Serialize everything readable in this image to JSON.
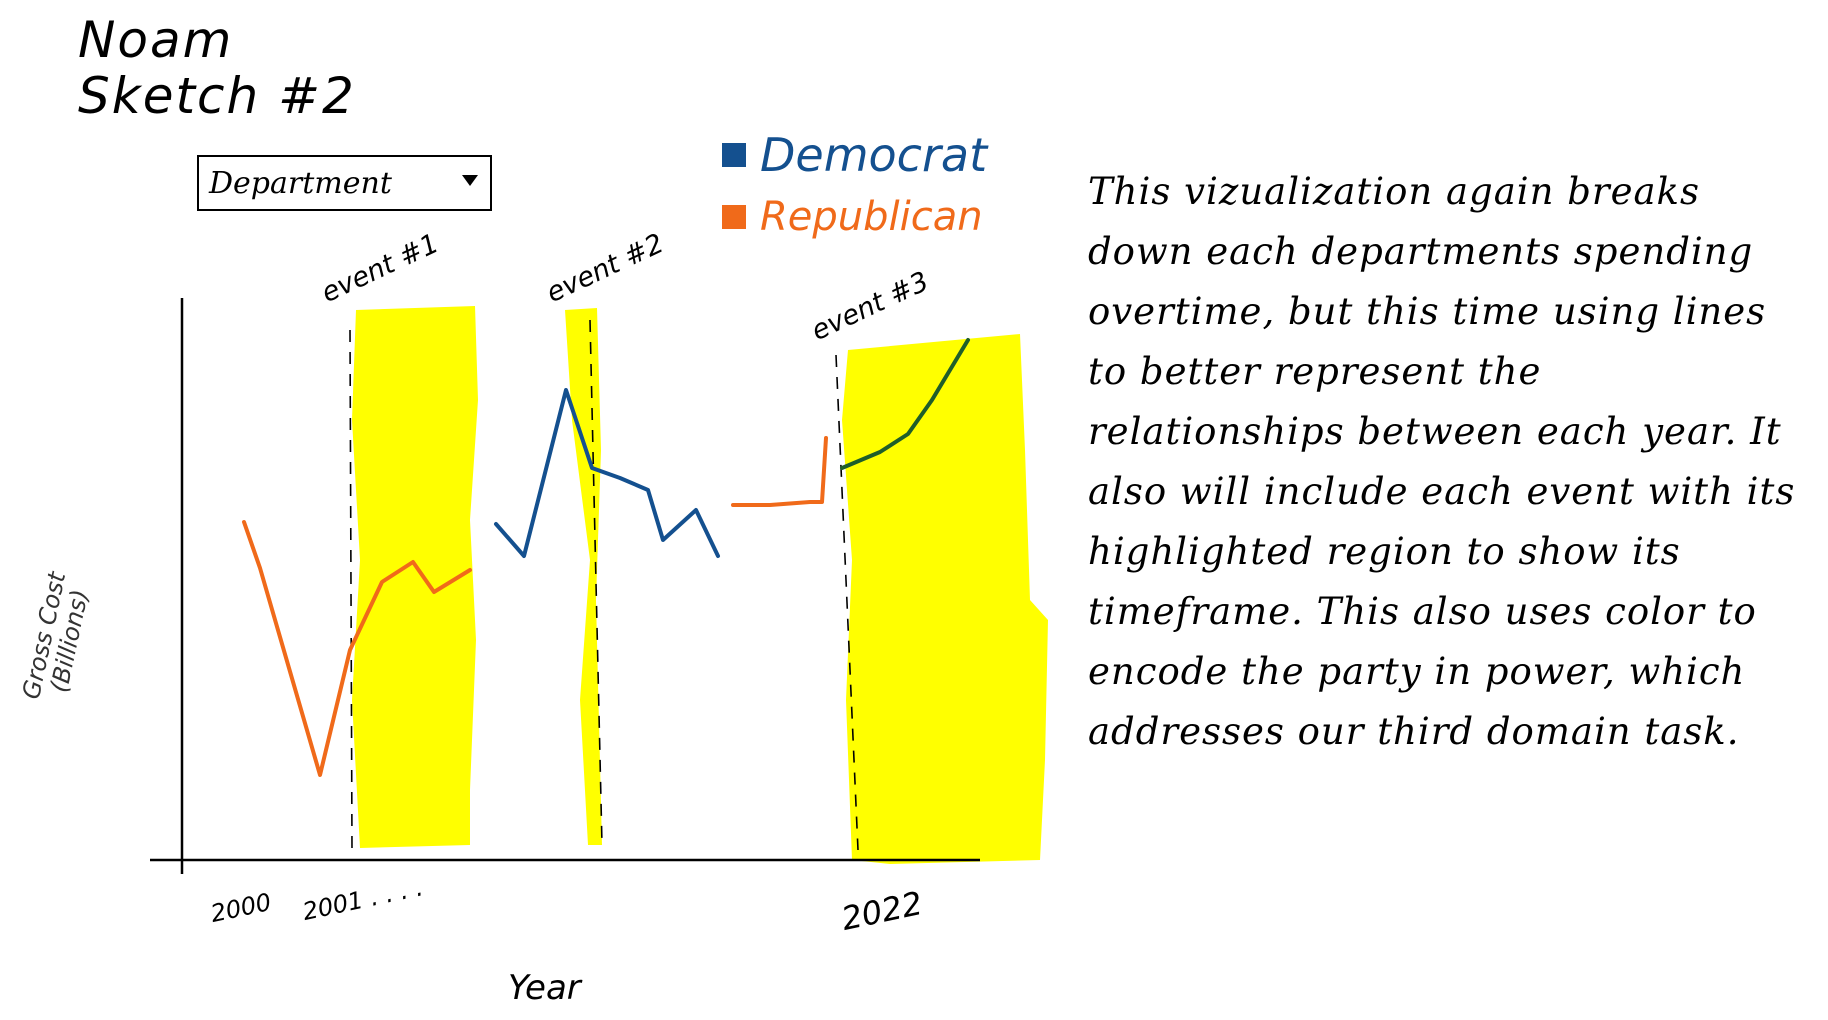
{
  "title": {
    "line1": "Noam",
    "line2": "Sketch #2"
  },
  "dropdown": {
    "label": "Department"
  },
  "legend": [
    {
      "label": "Democrat",
      "color": "#14508f"
    },
    {
      "label": "Republican",
      "color": "#f06a1a"
    }
  ],
  "events": [
    "event #1",
    "event #2",
    "event #3"
  ],
  "axis": {
    "ylabel": "Gross Cost",
    "ylabel_unit": "(Billions)",
    "xlabel": "Year",
    "ticks": [
      "2000",
      "2001 . . . .",
      "2022"
    ]
  },
  "description": "This vizualization again breaks down each departments spending overtime, but this time using lines to better represent the relationships between each year. It also will include each event with its highlighted region to show its timeframe. This also uses color to encode the party in power, which addresses our third domain task.",
  "colors": {
    "highlight": "#ffff00",
    "democrat": "#14508f",
    "republican": "#f06a1a",
    "overlap": "#1f5e2a"
  }
}
